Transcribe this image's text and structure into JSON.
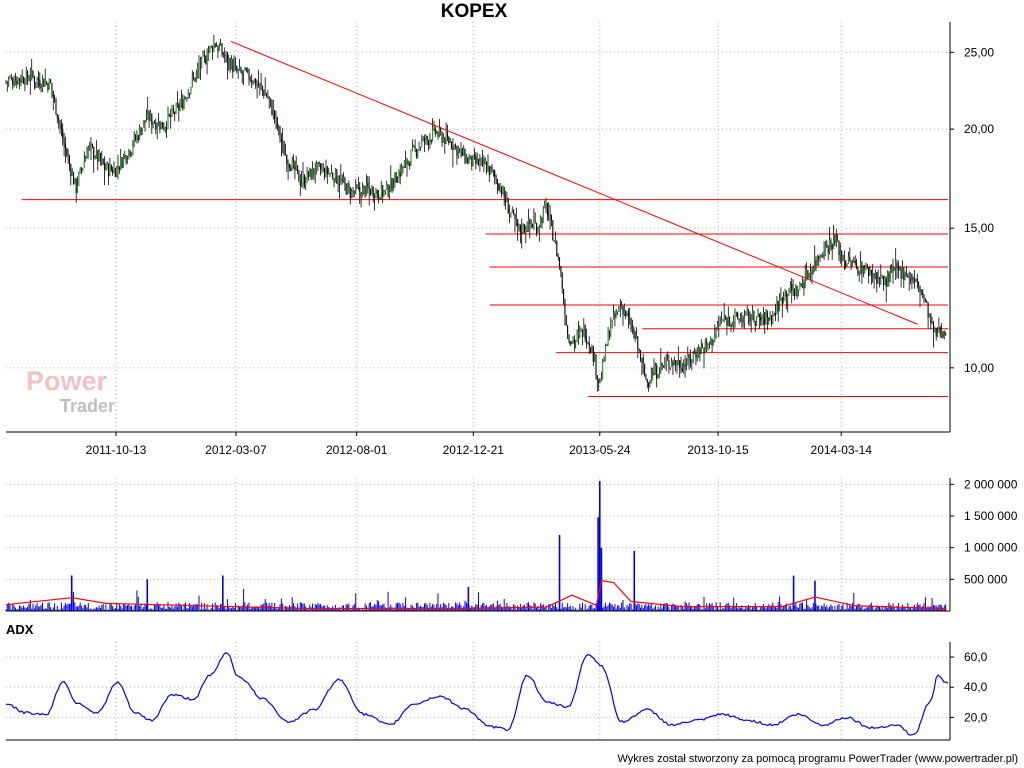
{
  "title": "KOPEX",
  "footer": "Wykres został stworzony za pomocą programu PowerTrader (www.powertrader.pl)",
  "watermark": {
    "line1": "Power",
    "line2": "Trader"
  },
  "chart_data": [
    {
      "type": "line",
      "title": "KOPEX",
      "panel": "price",
      "scale": "log",
      "ylim": [
        8.3,
        27.3
      ],
      "y_ticks": [
        10,
        15,
        20,
        25
      ],
      "y_tick_labels": [
        "10,00",
        "15,00",
        "20,00",
        "25,00"
      ],
      "x_ticks": [
        "2011-10-13",
        "2012-03-07",
        "2012-08-01",
        "2012-12-21",
        "2013-05-24",
        "2013-10-15",
        "2014-03-14"
      ],
      "xlim": [
        "2011-06-01",
        "2014-07-22"
      ],
      "grid": true,
      "series": [
        {
          "x": [
            "2011-06-01",
            "2011-07-01",
            "2011-07-25",
            "2011-08-10",
            "2011-08-25",
            "2011-09-10",
            "2011-10-01",
            "2011-10-13",
            "2011-11-01",
            "2011-11-20",
            "2011-12-10",
            "2012-01-01",
            "2012-01-20",
            "2012-02-10",
            "2012-03-01",
            "2012-03-07",
            "2012-03-25",
            "2012-04-15",
            "2012-05-05",
            "2012-05-25",
            "2012-06-15",
            "2012-07-05",
            "2012-07-25",
            "2012-08-15",
            "2012-09-05",
            "2012-09-25",
            "2012-10-15",
            "2012-11-05",
            "2012-11-25",
            "2012-12-15",
            "2013-01-05",
            "2013-01-20",
            "2013-02-05",
            "2013-02-15",
            "2013-03-01",
            "2013-03-10",
            "2013-03-20",
            "2013-04-05",
            "2013-04-15",
            "2013-04-25",
            "2013-05-05",
            "2013-05-15",
            "2013-05-24",
            "2013-06-05",
            "2013-06-20",
            "2013-07-05",
            "2013-07-20",
            "2013-08-05",
            "2013-08-20",
            "2013-09-05",
            "2013-09-20",
            "2013-10-05",
            "2013-10-20",
            "2013-11-05",
            "2013-11-20",
            "2013-12-05",
            "2013-12-20",
            "2014-01-05",
            "2014-01-20",
            "2014-02-05",
            "2014-02-20",
            "2014-03-05",
            "2014-03-20",
            "2014-04-05",
            "2014-04-20",
            "2014-05-05",
            "2014-05-20",
            "2014-06-05",
            "2014-06-20",
            "2014-07-05",
            "2014-07-20"
          ],
          "values": [
            23.0,
            23.3,
            22.8,
            19.3,
            16.8,
            19.0,
            17.8,
            17.8,
            19.0,
            20.7,
            20.2,
            21.5,
            23.6,
            25.7,
            24.2,
            23.6,
            23.3,
            22.0,
            18.7,
            17.2,
            17.8,
            17.5,
            16.6,
            16.8,
            16.6,
            17.8,
            19.0,
            19.8,
            19.2,
            18.2,
            18.0,
            17.2,
            15.6,
            14.9,
            15.2,
            15.1,
            16.0,
            13.5,
            11.0,
            10.8,
            11.2,
            10.5,
            9.5,
            11.2,
            12.0,
            11.0,
            9.6,
            10.0,
            10.2,
            10.1,
            10.5,
            10.7,
            11.5,
            11.5,
            11.6,
            11.5,
            11.6,
            12.5,
            12.5,
            13.3,
            14.1,
            14.5,
            13.6,
            13.4,
            13.2,
            12.8,
            13.3,
            13.1,
            12.5,
            11.0,
            11.2
          ]
        }
      ],
      "annotations": {
        "trendline": {
          "from": [
            "2012-03-01",
            25.8
          ],
          "to": [
            "2014-06-15",
            11.35
          ]
        },
        "horizontal_lines": [
          {
            "value": 16.3,
            "from": "2011-06-20"
          },
          {
            "value": 14.75,
            "from": "2013-01-05"
          },
          {
            "value": 13.4,
            "from": "2013-01-10"
          },
          {
            "value": 12.0,
            "from": "2013-01-10"
          },
          {
            "value": 11.2,
            "from": "2013-07-15"
          },
          {
            "value": 10.45,
            "from": "2013-04-01"
          },
          {
            "value": 9.2,
            "from": "2013-05-10"
          }
        ]
      },
      "colors": {
        "price": "#000000",
        "line": "#ff0000",
        "grid": "#b0b0b0"
      }
    },
    {
      "type": "bar",
      "panel": "volume",
      "ylim": [
        0,
        2100000
      ],
      "y_ticks": [
        500000,
        1000000,
        1500000,
        2000000
      ],
      "y_tick_labels": [
        "500 000",
        "1 000 000",
        "1 500 000",
        "2 000 000"
      ],
      "grid": true,
      "spikes": [
        {
          "x": "2011-08-20",
          "value": 560000
        },
        {
          "x": "2011-11-20",
          "value": 500000
        },
        {
          "x": "2012-02-20",
          "value": 560000
        },
        {
          "x": "2012-12-15",
          "value": 380000
        },
        {
          "x": "2013-04-05",
          "value": 1200000
        },
        {
          "x": "2013-05-24",
          "value": 2050000
        },
        {
          "x": "2013-05-22",
          "value": 1480000
        },
        {
          "x": "2013-05-26",
          "value": 1000000
        },
        {
          "x": "2013-07-05",
          "value": 950000
        },
        {
          "x": "2014-01-15",
          "value": 560000
        },
        {
          "x": "2014-02-10",
          "value": 480000
        }
      ],
      "baseline_volume": 110000,
      "moving_average": {
        "x": [
          "2011-06-01",
          "2011-08-20",
          "2011-10-01",
          "2012-01-01",
          "2012-06-01",
          "2012-12-01",
          "2013-03-20",
          "2013-04-20",
          "2013-05-20",
          "2013-05-26",
          "2013-06-10",
          "2013-07-01",
          "2013-09-01",
          "2014-01-01",
          "2014-02-10",
          "2014-04-01",
          "2014-07-20"
        ],
        "values": [
          100000,
          210000,
          120000,
          90000,
          40000,
          40000,
          60000,
          250000,
          90000,
          480000,
          450000,
          150000,
          70000,
          70000,
          220000,
          80000,
          40000
        ]
      },
      "colors": {
        "bars": "#0000ee",
        "ma": "#ff0000"
      }
    },
    {
      "type": "line",
      "panel": "indicator",
      "title": "ADX",
      "ylim": [
        5,
        70
      ],
      "y_ticks": [
        20,
        40,
        60
      ],
      "y_tick_labels": [
        "20,0",
        "40,0",
        "60,0"
      ],
      "grid": true,
      "series": [
        {
          "name": "ADX",
          "x": [
            "2011-06-01",
            "2011-06-25",
            "2011-07-20",
            "2011-08-10",
            "2011-08-25",
            "2011-09-20",
            "2011-10-15",
            "2011-11-05",
            "2011-11-25",
            "2011-12-20",
            "2012-01-15",
            "2012-02-05",
            "2012-02-25",
            "2012-03-10",
            "2012-04-10",
            "2012-05-10",
            "2012-06-10",
            "2012-07-10",
            "2012-08-10",
            "2012-09-10",
            "2012-10-10",
            "2012-11-10",
            "2012-12-10",
            "2013-01-10",
            "2013-02-01",
            "2013-02-25",
            "2013-03-20",
            "2013-04-15",
            "2013-05-10",
            "2013-05-25",
            "2013-06-20",
            "2013-07-20",
            "2013-08-20",
            "2013-09-20",
            "2013-10-20",
            "2013-11-20",
            "2013-12-20",
            "2014-01-20",
            "2014-02-20",
            "2014-03-20",
            "2014-04-20",
            "2014-05-20",
            "2014-06-10",
            "2014-06-30",
            "2014-07-10",
            "2014-07-22"
          ],
          "values": [
            29,
            23,
            22,
            44,
            30,
            23,
            43,
            23,
            18,
            35,
            32,
            48,
            63,
            47,
            32,
            17,
            25,
            45,
            22,
            15,
            29,
            34,
            26,
            14,
            12,
            48,
            30,
            27,
            62,
            55,
            17,
            25,
            15,
            18,
            22,
            18,
            15,
            22,
            15,
            20,
            13,
            15,
            8,
            30,
            48,
            42
          ]
        }
      ],
      "colors": {
        "line": "#0000ff"
      }
    }
  ]
}
